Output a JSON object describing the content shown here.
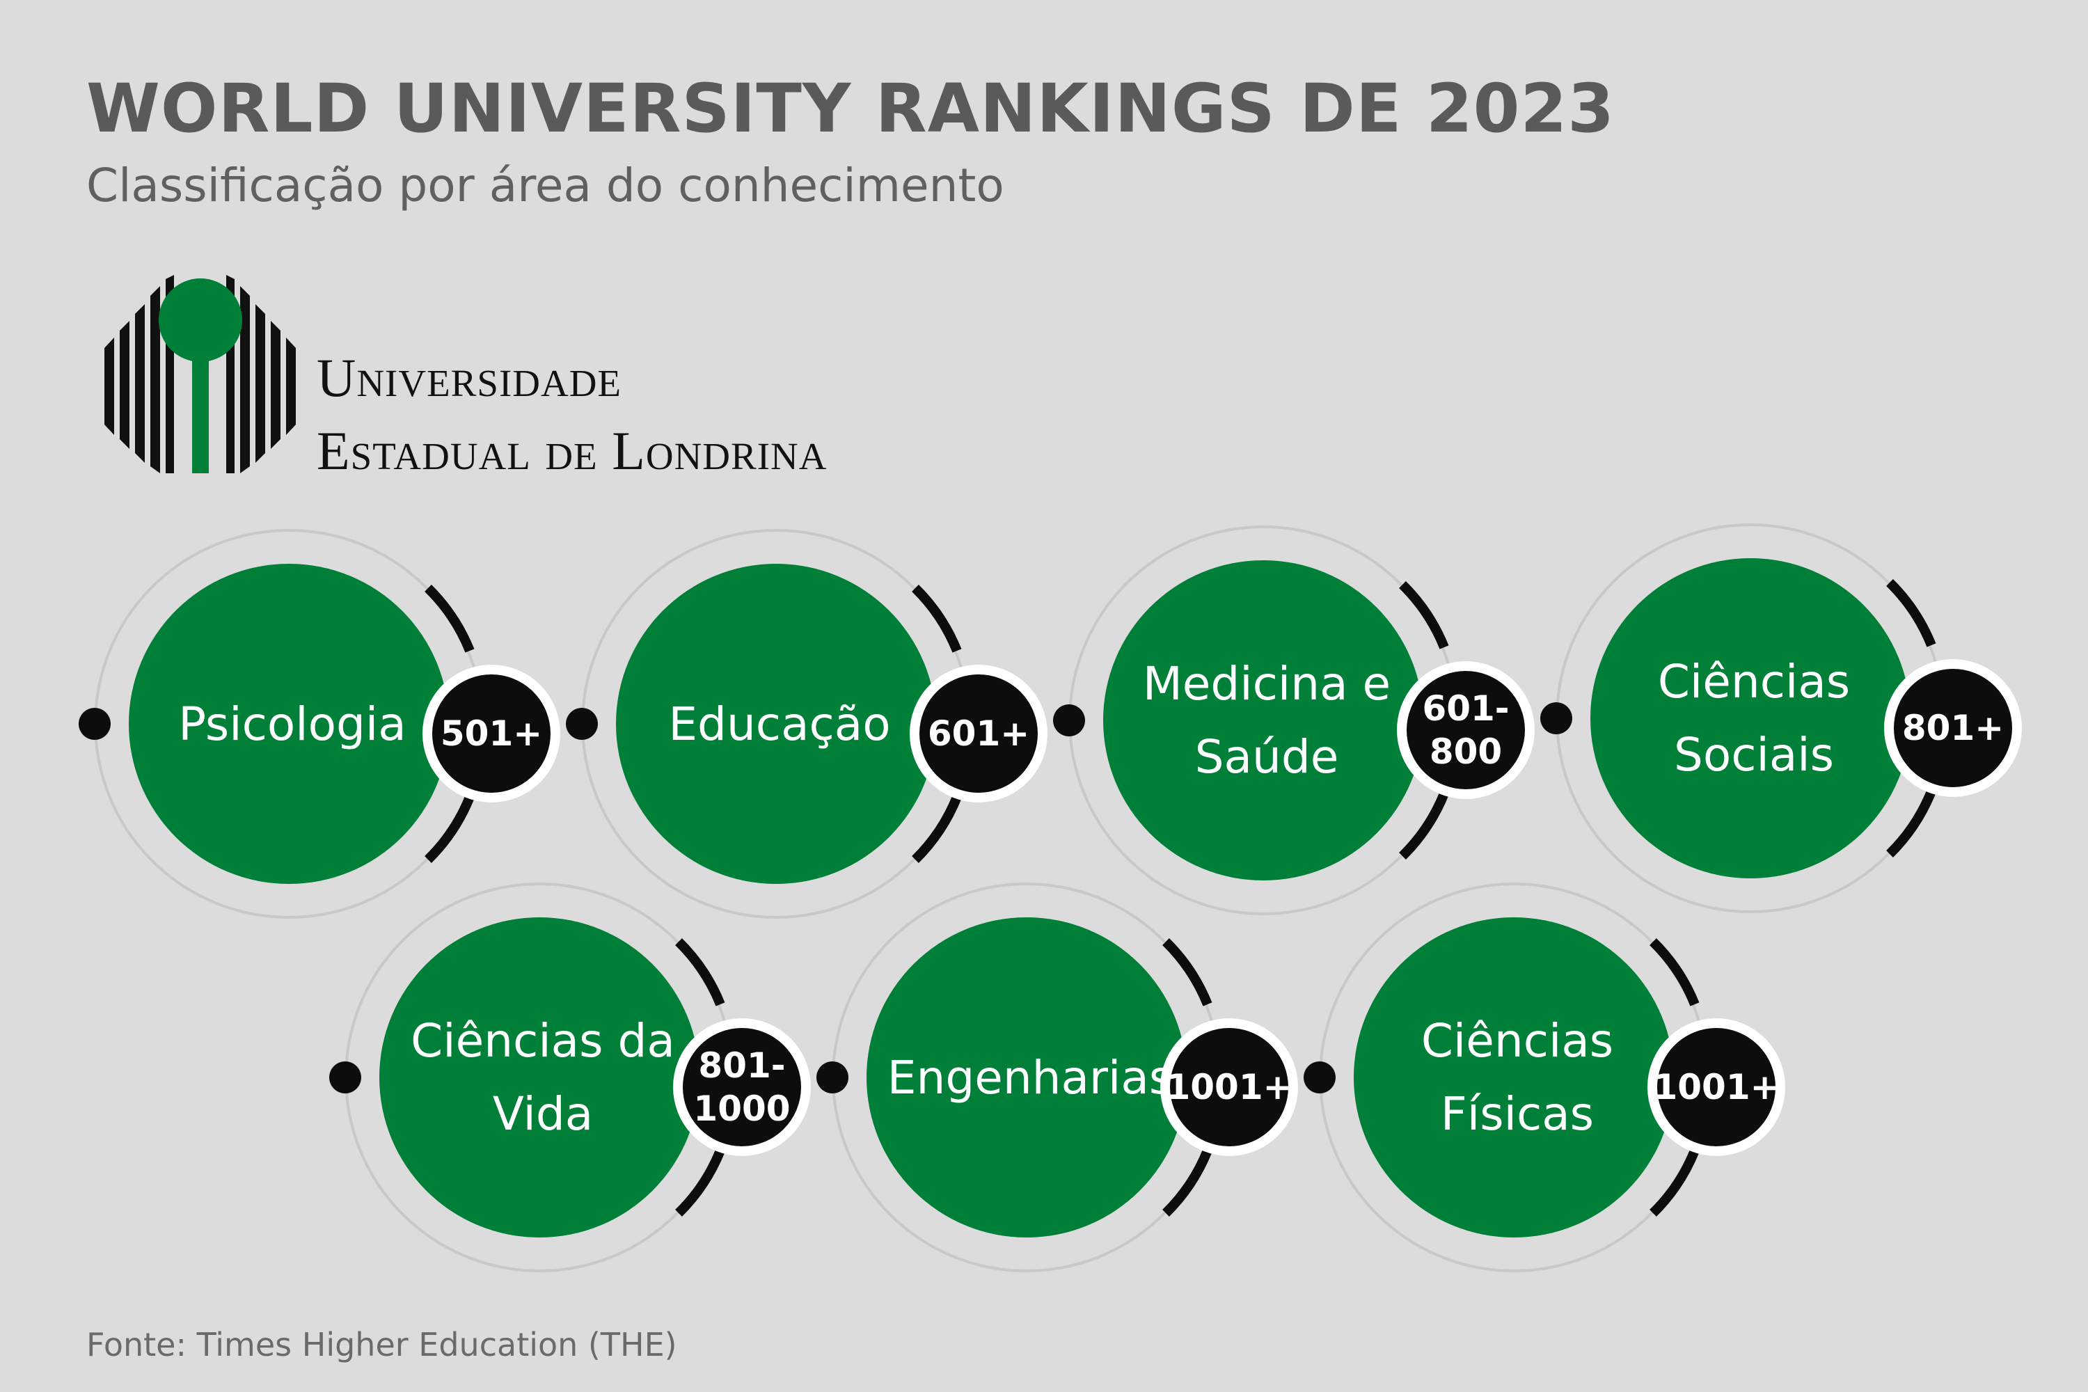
{
  "header": {
    "title": "WORLD UNIVERSITY RANKINGS DE 2023",
    "subtitle": "Classificação por área do conhecimento"
  },
  "logo": {
    "line1": "Universidade",
    "line2": "Estadual de Londrina",
    "colors": {
      "mark": "#111111",
      "accent": "#007f38"
    }
  },
  "rankings": [
    {
      "area": "Psicologia",
      "rank": "501+"
    },
    {
      "area": "Educação",
      "rank": "601+"
    },
    {
      "area": "Medicina e\nSaúde",
      "rank": "601-\n800"
    },
    {
      "area": "Ciências\nSociais",
      "rank": "801+"
    },
    {
      "area": "Ciências da\nVida",
      "rank": "801-\n1000"
    },
    {
      "area": "Engenharias",
      "rank": "1001+"
    },
    {
      "area": "Ciências\nFísicas",
      "rank": "1001+"
    }
  ],
  "colors": {
    "circle": "#007f38",
    "badge": "#0d0d0d",
    "background": "#dcdcdc",
    "text": "#5a5a5a"
  },
  "footer": {
    "source": "Fonte: Times Higher Education (THE)"
  }
}
